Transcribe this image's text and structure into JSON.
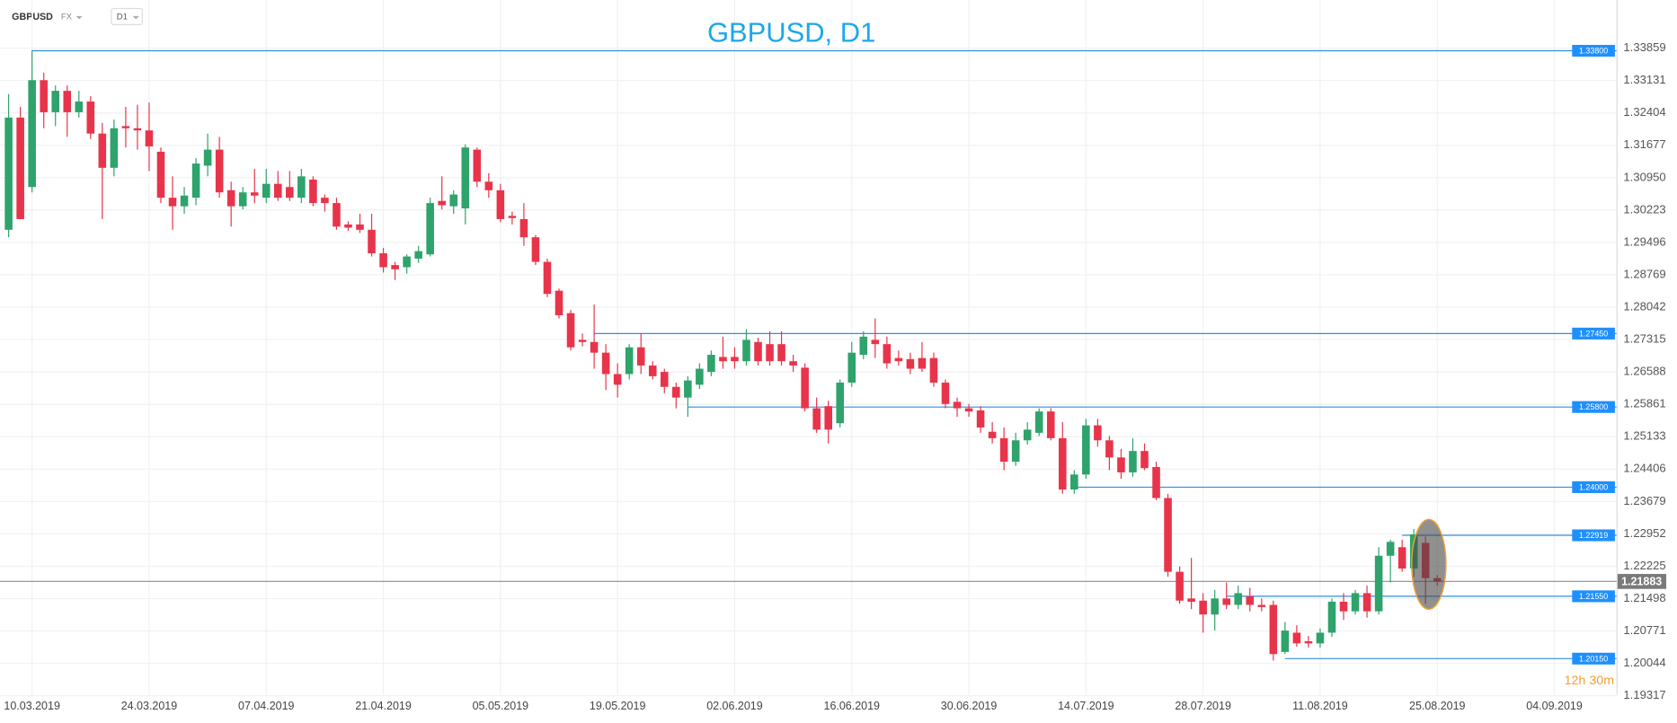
{
  "toolbar": {
    "symbol": "GBPUSD",
    "market": "FX",
    "interval": "D1"
  },
  "chart_data": {
    "type": "candlestick",
    "title": "GBPUSD, D1",
    "up_color": "#2ea36b",
    "down_color": "#e8344a",
    "level_color": "#2f8fe0",
    "grid": true,
    "categories": [
      null,
      null,
      "10.03.2019",
      null,
      null,
      null,
      null,
      null,
      null,
      null,
      null,
      null,
      "24.03.2019",
      null,
      null,
      null,
      null,
      null,
      null,
      null,
      null,
      null,
      "07.04.2019",
      null,
      null,
      null,
      null,
      null,
      null,
      null,
      null,
      null,
      "21.04.2019",
      null,
      null,
      null,
      null,
      null,
      null,
      null,
      null,
      null,
      "05.05.2019",
      null,
      null,
      null,
      null,
      null,
      null,
      null,
      null,
      null,
      "19.05.2019",
      null,
      null,
      null,
      null,
      null,
      null,
      null,
      null,
      null,
      "02.06.2019",
      null,
      null,
      null,
      null,
      null,
      null,
      null,
      null,
      null,
      "16.06.2019",
      null,
      null,
      null,
      null,
      null,
      null,
      null,
      null,
      null,
      "30.06.2019",
      null,
      null,
      null,
      null,
      null,
      null,
      null,
      null,
      null,
      "14.07.2019",
      null,
      null,
      null,
      null,
      null,
      null,
      null,
      null,
      null,
      "28.07.2019",
      null,
      null,
      null,
      null,
      null,
      null,
      null,
      null,
      null,
      "11.08.2019",
      null,
      null,
      null,
      null,
      null,
      null,
      null,
      null,
      null,
      "25.08.2019",
      null,
      null,
      null,
      null,
      null,
      null,
      null,
      null,
      null,
      "04.09.2019"
    ],
    "open": [
      1.2978,
      1.323,
      1.3074,
      1.3314,
      1.3242,
      1.329,
      1.3242,
      1.3266,
      1.3194,
      1.31172,
      1.32108,
      1.3206,
      1.32012,
      1.31532,
      1.305,
      1.30308,
      1.305,
      1.3122,
      1.3158,
      1.30668,
      1.30308,
      1.3062,
      1.305,
      1.30812,
      1.3074,
      1.305,
      1.30908,
      1.305,
      1.3038,
      1.299,
      1.299,
      1.2978,
      1.29252,
      1.28988,
      1.2894,
      1.29132,
      1.29228,
      1.30428,
      1.30308,
      1.3026,
      1.3158,
      1.3086,
      1.30668,
      1.30092,
      1.3002,
      1.29612,
      1.2906,
      1.28412,
      1.27908,
      1.27308,
      1.2726,
      1.2702,
      1.2654,
      1.2654,
      1.2714,
      1.26732,
      1.26588,
      1.26252,
      1.26012,
      1.263,
      1.26588,
      1.26924,
      1.26924,
      1.26828,
      1.2726,
      1.27212,
      1.27212,
      1.26828,
      1.26684,
      1.25772,
      1.2582,
      1.25436,
      1.26348,
      1.26972,
      1.27308,
      1.27212,
      1.269,
      1.26876,
      1.269,
      1.269,
      1.26348,
      1.25916,
      1.25772,
      1.25724,
      1.25244,
      1.251,
      1.24572,
      1.25052,
      1.2522,
      1.257,
      1.251,
      1.23948,
      1.24284,
      1.25388,
      1.25052,
      1.24668,
      1.24332,
      1.24812,
      1.24452,
      1.23756,
      1.221,
      1.215,
      1.21452,
      1.2114,
      1.215,
      1.21356,
      1.21548,
      1.21356,
      1.21356,
      1.203,
      1.20732,
      1.2054,
      1.20492,
      1.20732,
      1.21428,
      1.21212,
      1.2162,
      1.21212,
      1.2246,
      1.22652,
      1.22172,
      1.22748,
      1.21956,
      null,
      null,
      null,
      null,
      null,
      null,
      null,
      null,
      null,
      null
    ],
    "high": [
      1.32828,
      1.3254,
      1.33812,
      1.33308,
      1.3302,
      1.3302,
      1.329,
      1.3278,
      1.3218,
      1.32252,
      1.3254,
      1.32588,
      1.32636,
      1.31628,
      1.3098,
      1.3074,
      1.31388,
      1.3194,
      1.31868,
      1.3086,
      1.3074,
      1.31148,
      1.31148,
      1.311,
      1.311,
      1.31148,
      1.3098,
      1.30572,
      1.305,
      1.29972,
      1.3014,
      1.3014,
      1.29372,
      1.2906,
      1.29228,
      1.2942,
      1.305,
      1.3098,
      1.30668,
      1.317,
      1.31628,
      1.31052,
      1.30812,
      1.30188,
      1.3038,
      1.2966,
      1.29132,
      1.2846,
      1.2798,
      1.27452,
      1.281,
      1.27212,
      1.2678,
      1.27212,
      1.27452,
      1.26828,
      1.2666,
      1.26348,
      1.26492,
      1.2678,
      1.27068,
      1.2738,
      1.2714,
      1.27548,
      1.27356,
      1.275,
      1.275,
      1.26972,
      1.2678,
      1.26012,
      1.2594,
      1.2642,
      1.2726,
      1.275,
      1.27788,
      1.2738,
      1.27068,
      1.2702,
      1.2726,
      1.2702,
      1.2642,
      1.26012,
      1.25868,
      1.2582,
      1.2546,
      1.2534,
      1.2522,
      1.2546,
      1.25772,
      1.25772,
      1.2546,
      1.2438,
      1.25532,
      1.25532,
      1.25148,
      1.2486,
      1.251,
      1.2498,
      1.24572,
      1.23852,
      1.2222,
      1.22412,
      1.2162,
      1.21692,
      1.2186,
      1.21788,
      1.2174,
      1.215,
      1.21452,
      1.20972,
      1.209,
      1.2066,
      1.20828,
      1.215,
      1.2162,
      1.21692,
      1.21788,
      1.22652,
      1.2282,
      1.2282,
      1.2306,
      1.22892,
      1.22028,
      null,
      null,
      null,
      null,
      null,
      null,
      null,
      null,
      null,
      null
    ],
    "low": [
      1.29612,
      1.3002,
      1.3062,
      1.3206,
      1.32108,
      1.31868,
      1.323,
      1.3182,
      1.3002,
      1.3098,
      1.31628,
      1.3158,
      1.311,
      1.3038,
      1.2978,
      1.3014,
      1.30332,
      1.3098,
      1.305,
      1.29852,
      1.30236,
      1.3038,
      1.3038,
      1.30428,
      1.30428,
      1.3038,
      1.30308,
      1.30188,
      1.2978,
      1.29756,
      1.29708,
      1.2918,
      1.2882,
      1.28652,
      1.28796,
      1.29036,
      1.2918,
      1.30236,
      1.3014,
      1.299,
      1.3074,
      1.305,
      1.29948,
      1.299,
      1.2942,
      1.28988,
      1.28268,
      1.27788,
      1.27068,
      1.27164,
      1.2666,
      1.2618,
      1.26012,
      1.2642,
      1.2654,
      1.2642,
      1.26108,
      1.25772,
      1.2558,
      1.26204,
      1.26492,
      1.2666,
      1.2666,
      1.26732,
      1.26732,
      1.26732,
      1.26732,
      1.26588,
      1.257,
      1.2522,
      1.2498,
      1.2534,
      1.26252,
      1.26876,
      1.269,
      1.2666,
      1.26732,
      1.2654,
      1.26588,
      1.26252,
      1.25772,
      1.2558,
      1.2558,
      1.2522,
      1.2498,
      1.2438,
      1.24476,
      1.24956,
      1.25148,
      1.25052,
      1.23852,
      1.23852,
      1.24188,
      1.24908,
      1.2438,
      1.24188,
      1.24236,
      1.2438,
      1.23708,
      1.21988,
      1.2138,
      1.2126,
      1.20732,
      1.2078,
      1.2126,
      1.2126,
      1.21212,
      1.21212,
      1.20108,
      1.20252,
      1.2042,
      1.20396,
      1.20396,
      1.20636,
      1.2102,
      1.2114,
      1.21068,
      1.2114,
      1.2186,
      1.221,
      1.2198,
      1.2138,
      1.21788,
      null,
      null,
      null,
      null,
      null,
      null,
      null,
      null,
      null,
      null
    ],
    "close": [
      1.323,
      1.3002,
      1.3314,
      1.3242,
      1.329,
      1.3242,
      1.3266,
      1.3194,
      1.31172,
      1.3206,
      1.3206,
      1.32012,
      1.31652,
      1.305,
      1.30308,
      1.30548,
      1.31268,
      1.3158,
      1.3062,
      1.30308,
      1.3062,
      1.30548,
      1.30812,
      1.305,
      1.305,
      1.3098,
      1.3038,
      1.3038,
      1.29852,
      1.29828,
      1.2978,
      1.29252,
      1.2894,
      1.28892,
      1.2918,
      1.293,
      1.3038,
      1.30332,
      1.30572,
      1.31628,
      1.3086,
      1.30668,
      1.3002,
      1.30044,
      1.29612,
      1.2906,
      1.2834,
      1.2786,
      1.2714,
      1.2726,
      1.2702,
      1.2654,
      1.263,
      1.2714,
      1.26732,
      1.26492,
      1.26252,
      1.26012,
      1.26396,
      1.2666,
      1.26972,
      1.26828,
      1.26828,
      1.27308,
      1.26828,
      1.26828,
      1.26828,
      1.26732,
      1.25772,
      1.25292,
      1.25292,
      1.26348,
      1.2702,
      1.2738,
      1.27212,
      1.2678,
      1.26828,
      1.2666,
      1.2666,
      1.26348,
      1.25868,
      1.25772,
      1.257,
      1.2534,
      1.251,
      1.24572,
      1.25052,
      1.25292,
      1.257,
      1.251,
      1.23948,
      1.24284,
      1.25388,
      1.25052,
      1.24668,
      1.24332,
      1.24812,
      1.24428,
      1.23756,
      1.221,
      1.21452,
      1.21428,
      1.2114,
      1.215,
      1.21356,
      1.2162,
      1.21356,
      1.21308,
      1.20252,
      1.2078,
      1.20492,
      1.20492,
      1.20732,
      1.21428,
      1.21212,
      1.2162,
      1.21212,
      1.2246,
      1.22772,
      1.22172,
      1.2294,
      1.21956,
      1.21883,
      null,
      null,
      null,
      null,
      null,
      null,
      null,
      null,
      null,
      null
    ],
    "ylim": [
      1.1934,
      1.3494
    ],
    "yticks": [
      1.33859,
      1.33131,
      1.32404,
      1.31677,
      {
        "value": 1.3095,
        "label": "1.30950"
      },
      1.30223,
      1.29496,
      1.28769,
      1.28042,
      1.27315,
      1.26588,
      1.25861,
      1.25133,
      1.24406,
      1.23679,
      1.22952,
      1.22225,
      1.21498,
      1.20771,
      1.20044,
      1.19317
    ],
    "levels": [
      {
        "value": 1.338,
        "label": "1.33800"
      },
      {
        "value": 1.2745,
        "label": "1.27450"
      },
      {
        "value": 1.258,
        "label": "1.25800"
      },
      {
        "value": 1.24,
        "label": "1.24000"
      },
      1.22919,
      {
        "value": 1.2155,
        "label": "1.21550"
      },
      {
        "value": 1.2015,
        "label": "1.20150"
      }
    ],
    "current_price": 1.21883,
    "countdown": "12h 30m"
  }
}
